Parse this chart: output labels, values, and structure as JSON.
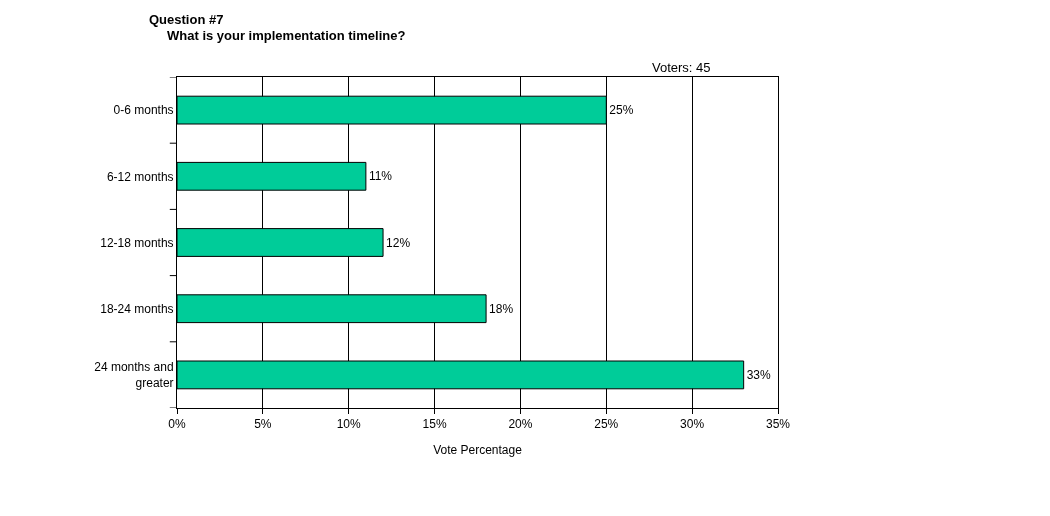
{
  "chart_data": {
    "type": "bar",
    "orientation": "horizontal",
    "title": "Question #7",
    "subtitle": "What is your implementation timeline?",
    "xlabel": "Vote Percentage",
    "categories": [
      "0-6 months",
      "6-12 months",
      "12-18 months",
      "18-24 months",
      "24 months and\ngreater"
    ],
    "values": [
      25,
      11,
      12,
      18,
      33
    ],
    "color": "#00cc99",
    "value_labels": [
      "25%",
      "11%",
      "12%",
      "18%",
      "33%"
    ],
    "xlim": [
      0,
      35
    ],
    "xticks": [
      {
        "value": 0,
        "label": "0%"
      },
      {
        "value": 5,
        "label": "5%"
      },
      {
        "value": 10,
        "label": "10%"
      },
      {
        "value": 15,
        "label": "15%"
      },
      {
        "value": 20,
        "label": "20%"
      },
      {
        "value": 25,
        "label": "25%"
      },
      {
        "value": 30,
        "label": "30%"
      },
      {
        "value": 35,
        "label": "35%"
      }
    ],
    "grid": "x",
    "annotations": [
      "Voters: 45"
    ]
  }
}
